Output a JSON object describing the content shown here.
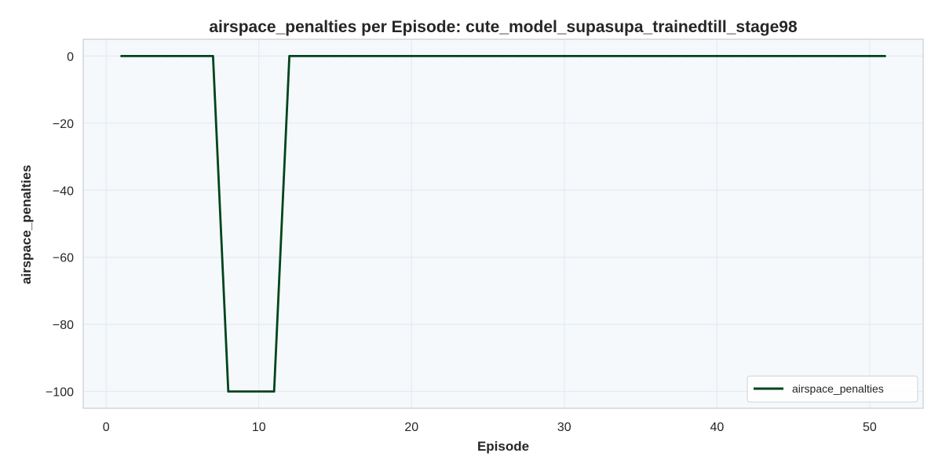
{
  "chart_data": {
    "type": "line",
    "title": "airspace_penalties per Episode: cute_model_supasupa_trainedtill_stage98",
    "xlabel": "Episode",
    "ylabel": "airspace_penalties",
    "xlim": [
      -1.5,
      53.5
    ],
    "ylim": [
      -105,
      5
    ],
    "xticks": [
      0,
      10,
      20,
      30,
      40,
      50
    ],
    "yticks": [
      0,
      -20,
      -40,
      -60,
      -80,
      -100
    ],
    "xtick_labels": [
      "0",
      "10",
      "20",
      "30",
      "40",
      "50"
    ],
    "ytick_labels": [
      "0",
      "−20",
      "−40",
      "−60",
      "−80",
      "−100"
    ],
    "grid": true,
    "legend_position": "lower-right",
    "series": [
      {
        "name": "airspace_penalties",
        "color": "#00441b",
        "x": [
          1,
          2,
          3,
          4,
          5,
          6,
          7,
          8,
          9,
          10,
          11,
          12,
          13,
          14,
          15,
          16,
          17,
          18,
          19,
          20,
          21,
          22,
          23,
          24,
          25,
          26,
          27,
          28,
          29,
          30,
          31,
          32,
          33,
          34,
          35,
          36,
          37,
          38,
          39,
          40,
          41,
          42,
          43,
          44,
          45,
          46,
          47,
          48,
          49,
          50,
          51
        ],
        "y": [
          0,
          0,
          0,
          0,
          0,
          0,
          0,
          -100,
          -100,
          -100,
          -100,
          0,
          0,
          0,
          0,
          0,
          0,
          0,
          0,
          0,
          0,
          0,
          0,
          0,
          0,
          0,
          0,
          0,
          0,
          0,
          0,
          0,
          0,
          0,
          0,
          0,
          0,
          0,
          0,
          0,
          0,
          0,
          0,
          0,
          0,
          0,
          0,
          0,
          0,
          0,
          0
        ]
      }
    ]
  },
  "style": {
    "plot_background": "#f5f9fc",
    "grid_color": "#e3e8ee",
    "spine_color": "#c8cdd2",
    "text_color": "#262626"
  }
}
